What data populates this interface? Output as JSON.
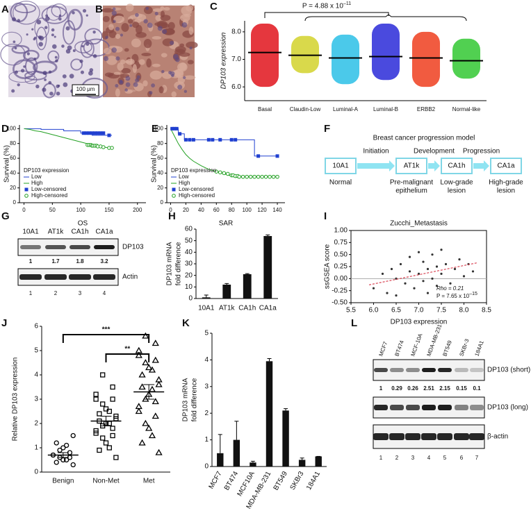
{
  "panel_labels": [
    "A",
    "B",
    "C",
    "D",
    "E",
    "F",
    "G",
    "H",
    "I",
    "J",
    "K",
    "L"
  ],
  "panel_a": {
    "scale_bar": "100 μm"
  },
  "chart_data": [
    {
      "type": "strip",
      "categories": [
        "Basal",
        "Claudin-Low",
        "Luminal-A",
        "Luminal-B",
        "ERBB2",
        "Normal-like"
      ],
      "means": [
        7.25,
        7.15,
        7.05,
        7.1,
        7.05,
        6.95
      ],
      "mins": [
        6.0,
        6.5,
        6.1,
        6.25,
        6.0,
        6.3
      ],
      "maxs": [
        8.3,
        7.85,
        7.9,
        8.3,
        8.0,
        7.75
      ],
      "colors": [
        "#e0141c",
        "#d2d22c",
        "#2cc0e6",
        "#2a2ad8",
        "#ee3e1e",
        "#33c833"
      ],
      "ylabel": "DP103 expression",
      "ylim": [
        5.5,
        8.4
      ],
      "yticks": [
        {
          "value": 6,
          "label": "6.0"
        },
        {
          "value": 7,
          "label": "7.0"
        },
        {
          "value": 8,
          "label": "8.0"
        }
      ],
      "annotation": {
        "text": "P = 4.88 x 10",
        "exponent": "–11"
      }
    },
    {
      "type": "survival",
      "xlabel": "OS",
      "ylabel": "Survival (%)",
      "legend_title": "DP103 expression",
      "xlim": [
        -8,
        215
      ],
      "xticks": [
        0,
        50,
        100,
        150,
        200
      ],
      "ylim": [
        0,
        105
      ],
      "yticks": [
        0,
        20,
        40,
        60,
        80,
        100
      ],
      "series": [
        {
          "name": "Low",
          "color": "#2040d0",
          "x": [
            0,
            30,
            30,
            70,
            70,
            100,
            100,
            120,
            120,
            155
          ],
          "y": [
            100,
            100,
            99,
            99,
            97,
            97,
            94,
            94,
            91,
            91
          ]
        },
        {
          "name": "High",
          "color": "#22a022",
          "x": [
            0,
            10,
            20,
            30,
            40,
            50,
            60,
            70,
            80,
            90,
            100,
            110,
            120,
            130,
            140,
            155
          ],
          "y": [
            100,
            99,
            97,
            96,
            94,
            92,
            90,
            88,
            86,
            84,
            82,
            80,
            78,
            77,
            75,
            74
          ]
        }
      ],
      "censored": [
        {
          "name": "Low-censored",
          "marker": "square",
          "color": "#2040d0",
          "x": [
            105,
            110,
            115,
            120,
            125,
            130,
            135,
            140,
            150
          ],
          "y": [
            94,
            94,
            94,
            94,
            94,
            94,
            94,
            94,
            91
          ]
        },
        {
          "name": "High-censored",
          "marker": "circle",
          "color": "#22a022",
          "x": [
            112,
            115,
            118,
            120,
            122,
            125,
            128,
            130,
            135,
            140,
            150,
            155
          ],
          "y": [
            78,
            78,
            78,
            77,
            77,
            77,
            77,
            76,
            76,
            75,
            74,
            74
          ]
        }
      ]
    },
    {
      "type": "survival",
      "xlabel": "SAR",
      "ylabel": "Survival (%)",
      "legend_title": "DP103 expression",
      "xlim": [
        -5,
        150
      ],
      "xticks": [
        0,
        20,
        40,
        60,
        80,
        100,
        120,
        140
      ],
      "ylim": [
        0,
        105
      ],
      "yticks": [
        0,
        20,
        40,
        60,
        80,
        100
      ],
      "series": [
        {
          "name": "Low",
          "color": "#2040d0",
          "x": [
            0,
            10,
            10,
            18,
            18,
            110,
            110,
            140
          ],
          "y": [
            100,
            100,
            93,
            93,
            85,
            85,
            63,
            63
          ]
        },
        {
          "name": "High",
          "color": "#22a022",
          "x": [
            0,
            5,
            10,
            15,
            20,
            25,
            30,
            40,
            50,
            60,
            70,
            80,
            90,
            100,
            140
          ],
          "y": [
            100,
            90,
            80,
            72,
            65,
            60,
            56,
            50,
            45,
            42,
            39,
            36,
            35,
            35,
            35
          ]
        }
      ],
      "censored": [
        {
          "name": "Low-censored",
          "marker": "square",
          "color": "#2040d0",
          "x": [
            2,
            5,
            8,
            12,
            20,
            25,
            30,
            50,
            55,
            65,
            80,
            85,
            115,
            140
          ],
          "y": [
            100,
            100,
            100,
            93,
            85,
            85,
            85,
            85,
            85,
            85,
            85,
            85,
            63,
            63
          ]
        },
        {
          "name": "High-censored",
          "marker": "circle",
          "color": "#22a022",
          "x": [
            60,
            65,
            70,
            75,
            80,
            82,
            85,
            88,
            90,
            95,
            100,
            105,
            110,
            115,
            120,
            125,
            130,
            135,
            140
          ],
          "y": [
            42,
            41,
            40,
            39,
            37,
            37,
            36,
            36,
            35,
            35,
            35,
            35,
            35,
            35,
            35,
            35,
            35,
            35,
            35
          ]
        }
      ]
    },
    {
      "type": "bar",
      "categories": [
        "10A1",
        "AT1k",
        "CA1h",
        "CA1a"
      ],
      "values": [
        1,
        12,
        21,
        54
      ],
      "errors": [
        2,
        1,
        0.5,
        1
      ],
      "color": "#111111",
      "ylabel": [
        "DP103 mRNA",
        "fold difference"
      ],
      "ylim": [
        0,
        60
      ],
      "yticks": [
        0,
        10,
        20,
        30,
        40,
        50,
        60
      ]
    },
    {
      "type": "scatter",
      "title": "Zucchi_Metastasis",
      "xlabel": "DP103 expression",
      "ylabel": "ssGSEA score",
      "color": "#333333",
      "x": [
        6.0,
        6.2,
        6.3,
        6.4,
        6.5,
        6.5,
        6.6,
        6.7,
        6.8,
        6.8,
        6.9,
        7.0,
        7.0,
        7.1,
        7.1,
        7.2,
        7.2,
        7.3,
        7.3,
        7.4,
        7.4,
        7.5,
        7.5,
        7.6,
        7.7,
        7.8,
        7.9,
        8.0,
        8.1,
        8.2
      ],
      "y": [
        -0.2,
        0.1,
        -0.3,
        0.2,
        0.0,
        -0.35,
        0.3,
        -0.1,
        0.15,
        0.45,
        -0.2,
        0.1,
        0.55,
        -0.05,
        0.35,
        0.2,
        -0.3,
        0.0,
        0.5,
        0.25,
        -0.15,
        0.1,
        0.6,
        0.3,
        -0.1,
        0.2,
        0.4,
        0.05,
        0.3,
        0.15
      ],
      "fit": {
        "x": [
          5.9,
          8.3
        ],
        "y": [
          -0.13,
          0.33
        ],
        "color": "#d84050"
      },
      "hline": 0,
      "xlim": [
        5.5,
        8.5
      ],
      "xticks": [
        5.5,
        {
          "value": 6,
          "label": "6.0"
        },
        6.5,
        {
          "value": 7,
          "label": "7.0"
        },
        7.5,
        {
          "value": 8,
          "label": "8.0"
        },
        8.5
      ],
      "ylim": [
        -0.5,
        1.0
      ],
      "yticks": [
        {
          "value": -0.5,
          "label": "-0.50"
        },
        {
          "value": -0.25,
          "label": "-0.25"
        },
        {
          "value": 0,
          "label": "0.00"
        },
        {
          "value": 0.25,
          "label": "0.25"
        },
        {
          "value": 0.5,
          "label": "0.50"
        },
        {
          "value": 0.75,
          "label": "0.75"
        },
        {
          "value": 1,
          "label": "1.00"
        }
      ],
      "rho_label": "Rho = 0.21",
      "p_label": {
        "text": "P = 7.65 x 10",
        "exponent": "–15"
      }
    },
    {
      "type": "dot",
      "categories": [
        "Benign",
        "Non-Met",
        "Met"
      ],
      "markers": [
        "circle",
        "square",
        "triangle"
      ],
      "values": [
        [
          0.3,
          0.4,
          0.5,
          0.5,
          0.6,
          0.6,
          0.7,
          0.7,
          0.8,
          0.9,
          1.0,
          1.1,
          1.2,
          1.5
        ],
        [
          0.6,
          0.9,
          1.0,
          1.2,
          1.4,
          1.5,
          1.6,
          1.7,
          1.8,
          1.9,
          2.0,
          2.0,
          2.1,
          2.2,
          2.3,
          2.4,
          2.5,
          2.6,
          2.8,
          3.0,
          3.0,
          3.2,
          3.5,
          4.0
        ],
        [
          0.8,
          1.2,
          1.5,
          1.8,
          2.0,
          2.3,
          2.5,
          2.7,
          2.9,
          3.0,
          3.2,
          3.4,
          3.5,
          3.6,
          3.8,
          4.0,
          4.2,
          4.3,
          4.5,
          4.6,
          4.8,
          5.0,
          5.3,
          5.6
        ]
      ],
      "means": [
        0.7,
        2.1,
        3.3
      ],
      "sems": [
        0.1,
        0.2,
        0.3
      ],
      "significance": [
        "***",
        "**"
      ],
      "ylabel": "Relative DP103 expression",
      "ylim": [
        0,
        6
      ],
      "yticks": [
        0,
        1,
        2,
        3,
        4,
        5,
        6
      ]
    },
    {
      "type": "bar",
      "categories": [
        "MCF7",
        "BT474",
        "MCF10A",
        "MDA-MB-231",
        "BT549",
        "SKBr3",
        "184A1"
      ],
      "values": [
        0.5,
        1.0,
        0.15,
        3.95,
        2.1,
        0.25,
        0.38
      ],
      "errors": [
        0.7,
        0.7,
        0.05,
        0.1,
        0.07,
        0.07,
        0
      ],
      "color": "#111111",
      "ylabel": [
        "DP103 mRNA",
        "fold difference"
      ],
      "ylim": [
        0,
        5
      ],
      "yticks": [
        0,
        1,
        2,
        3,
        4,
        5
      ]
    }
  ],
  "diagram": {
    "title": "Breast cancer progression model",
    "nodes": [
      "10A1",
      "AT1k",
      "CA1h",
      "CA1a"
    ],
    "transitions": [
      "Initiation",
      "Development",
      "Progression"
    ],
    "stages": [
      [
        "Normal"
      ],
      [
        "Pre-malignant",
        "epithelium"
      ],
      [
        "Low-grade",
        "lesion"
      ],
      [
        "High-grade",
        "lesion"
      ]
    ]
  },
  "blot_g": {
    "lanes": [
      "10A1",
      "AT1k",
      "CA1h",
      "CA1a"
    ],
    "rows": [
      "DP103",
      "Actin"
    ],
    "quant": [
      "1",
      "1.7",
      "1.8",
      "3.2"
    ],
    "lane_numbers": [
      "1",
      "2",
      "3",
      "4"
    ]
  },
  "blot_l": {
    "lanes": [
      "MCF7",
      "BT474",
      "MCF-10A",
      "MDA-MB-231",
      "BT549",
      "SKBr-3",
      "184A1"
    ],
    "rows": [
      "DP103 (short)",
      "DP103 (long)",
      "β-actin"
    ],
    "quant": [
      "1",
      "0.29",
      "0.26",
      "2.51",
      "2.15",
      "0.15",
      "0.1"
    ],
    "lane_numbers": [
      "1",
      "2",
      "3",
      "4",
      "5",
      "6",
      "7"
    ]
  }
}
